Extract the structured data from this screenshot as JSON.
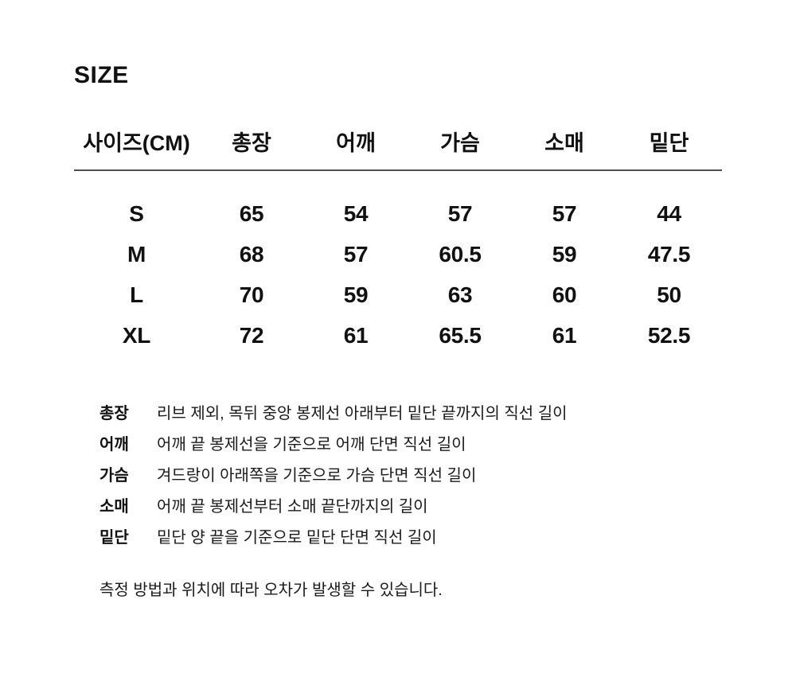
{
  "page": {
    "title": "SIZE",
    "note": "측정 방법과 위치에 따라 오차가 발생할 수 있습니다."
  },
  "size_table": {
    "columns": [
      "사이즈(CM)",
      "총장",
      "어깨",
      "가슴",
      "소매",
      "밑단"
    ],
    "rows": [
      {
        "size": "S",
        "values": [
          "65",
          "54",
          "57",
          "57",
          "44"
        ]
      },
      {
        "size": "M",
        "values": [
          "68",
          "57",
          "60.5",
          "59",
          "47.5"
        ]
      },
      {
        "size": "L",
        "values": [
          "70",
          "59",
          "63",
          "60",
          "50"
        ]
      },
      {
        "size": "XL",
        "values": [
          "72",
          "61",
          "65.5",
          "61",
          "52.5"
        ]
      }
    ]
  },
  "definitions": [
    {
      "term": "총장",
      "description": "리브 제외, 목뒤 중앙 봉제선 아래부터 밑단 끝까지의 직선 길이"
    },
    {
      "term": "어깨",
      "description": "어깨 끝 봉제선을 기준으로 어깨 단면 직선 길이"
    },
    {
      "term": "가슴",
      "description": "겨드랑이 아래쪽을 기준으로 가슴 단면 직선 길이"
    },
    {
      "term": "소매",
      "description": "어깨 끝 봉제선부터 소매 끝단까지의 길이"
    },
    {
      "term": "밑단",
      "description": "밑단 양 끝을 기준으로 밑단 단면 직선 길이"
    }
  ]
}
